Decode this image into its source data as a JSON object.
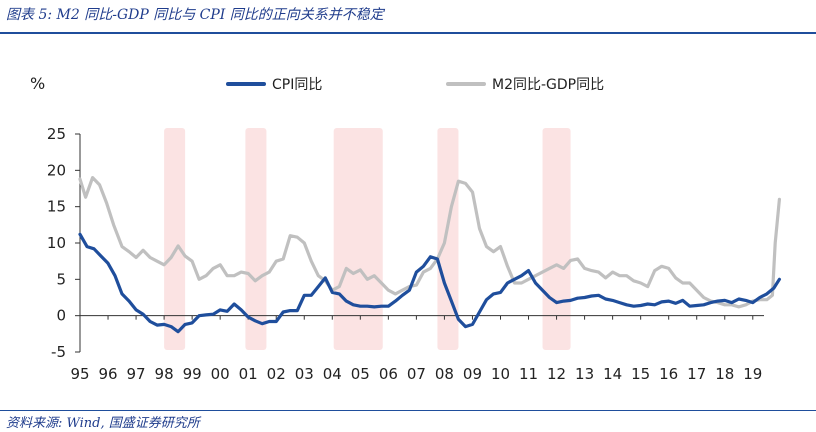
{
  "title": "图表 5:  M2 同比-GDP 同比与 CPI 同比的正向关系并不稳定",
  "source": "资料来源:  Wind, 国盛证券研究所",
  "chart_data": {
    "type": "line",
    "unit_label": "%",
    "ylim": [
      -5,
      25
    ],
    "yticks": [
      -5,
      0,
      5,
      10,
      15,
      20,
      25
    ],
    "xlim": [
      1995,
      2019.4
    ],
    "xticks": [
      {
        "x": 1995,
        "label": "95"
      },
      {
        "x": 1996,
        "label": "96"
      },
      {
        "x": 1997,
        "label": "97"
      },
      {
        "x": 1998,
        "label": "98"
      },
      {
        "x": 1999,
        "label": "99"
      },
      {
        "x": 2000,
        "label": "00"
      },
      {
        "x": 2001,
        "label": "01"
      },
      {
        "x": 2002,
        "label": "02"
      },
      {
        "x": 2003,
        "label": "03"
      },
      {
        "x": 2004,
        "label": "04"
      },
      {
        "x": 2005,
        "label": "05"
      },
      {
        "x": 2006,
        "label": "06"
      },
      {
        "x": 2007,
        "label": "07"
      },
      {
        "x": 2008,
        "label": "08"
      },
      {
        "x": 2009,
        "label": "09"
      },
      {
        "x": 2010,
        "label": "10"
      },
      {
        "x": 2011,
        "label": "11"
      },
      {
        "x": 2012,
        "label": "12"
      },
      {
        "x": 2013,
        "label": "13"
      },
      {
        "x": 2014,
        "label": "14"
      },
      {
        "x": 2015,
        "label": "15"
      },
      {
        "x": 2016,
        "label": "16"
      },
      {
        "x": 2017,
        "label": "17"
      },
      {
        "x": 2018,
        "label": "18"
      },
      {
        "x": 2019,
        "label": "19"
      }
    ],
    "shaded_periods": [
      [
        1998.0,
        1998.75
      ],
      [
        2000.9,
        2001.65
      ],
      [
        2004.05,
        2005.8
      ],
      [
        2007.75,
        2008.5
      ],
      [
        2011.5,
        2012.5
      ]
    ],
    "shade_color": "#fbe3e3",
    "series": [
      {
        "name": "CPI同比",
        "color": "#1f4e9c",
        "points": [
          [
            1995.0,
            11.2
          ],
          [
            1995.25,
            9.5
          ],
          [
            1995.5,
            9.2
          ],
          [
            1995.75,
            8.2
          ],
          [
            1996.0,
            7.2
          ],
          [
            1996.25,
            5.5
          ],
          [
            1996.5,
            3.0
          ],
          [
            1996.75,
            2.0
          ],
          [
            1997.0,
            0.8
          ],
          [
            1997.25,
            0.2
          ],
          [
            1997.5,
            -0.8
          ],
          [
            1997.75,
            -1.3
          ],
          [
            1998.0,
            -1.2
          ],
          [
            1998.25,
            -1.5
          ],
          [
            1998.5,
            -2.2
          ],
          [
            1998.75,
            -1.2
          ],
          [
            1999.0,
            -1.0
          ],
          [
            1999.25,
            0.0
          ],
          [
            1999.5,
            0.1
          ],
          [
            1999.75,
            0.2
          ],
          [
            2000.0,
            0.8
          ],
          [
            2000.25,
            0.6
          ],
          [
            2000.5,
            1.6
          ],
          [
            2000.75,
            0.8
          ],
          [
            2001.0,
            -0.2
          ],
          [
            2001.25,
            -0.7
          ],
          [
            2001.5,
            -1.1
          ],
          [
            2001.75,
            -0.8
          ],
          [
            2002.0,
            -0.8
          ],
          [
            2002.25,
            0.5
          ],
          [
            2002.5,
            0.7
          ],
          [
            2002.75,
            0.7
          ],
          [
            2003.0,
            2.8
          ],
          [
            2003.25,
            2.8
          ],
          [
            2003.5,
            4.0
          ],
          [
            2003.75,
            5.2
          ],
          [
            2004.0,
            3.2
          ],
          [
            2004.25,
            3.0
          ],
          [
            2004.5,
            2.0
          ],
          [
            2004.75,
            1.5
          ],
          [
            2005.0,
            1.3
          ],
          [
            2005.25,
            1.3
          ],
          [
            2005.5,
            1.2
          ],
          [
            2005.75,
            1.3
          ],
          [
            2006.0,
            1.3
          ],
          [
            2006.25,
            2.0
          ],
          [
            2006.5,
            2.8
          ],
          [
            2006.75,
            3.5
          ],
          [
            2007.0,
            6.0
          ],
          [
            2007.25,
            6.8
          ],
          [
            2007.5,
            8.1
          ],
          [
            2007.75,
            7.8
          ],
          [
            2008.0,
            4.5
          ],
          [
            2008.25,
            2.0
          ],
          [
            2008.5,
            -0.5
          ],
          [
            2008.75,
            -1.5
          ],
          [
            2009.0,
            -1.2
          ],
          [
            2009.25,
            0.5
          ],
          [
            2009.5,
            2.2
          ],
          [
            2009.75,
            3.0
          ],
          [
            2010.0,
            3.2
          ],
          [
            2010.25,
            4.5
          ],
          [
            2010.5,
            5.0
          ],
          [
            2010.75,
            5.5
          ],
          [
            2011.0,
            6.2
          ],
          [
            2011.25,
            4.5
          ],
          [
            2011.5,
            3.5
          ],
          [
            2011.75,
            2.5
          ],
          [
            2012.0,
            1.8
          ],
          [
            2012.25,
            2.0
          ],
          [
            2012.5,
            2.1
          ],
          [
            2012.75,
            2.4
          ],
          [
            2013.0,
            2.5
          ],
          [
            2013.25,
            2.7
          ],
          [
            2013.5,
            2.8
          ],
          [
            2013.75,
            2.3
          ],
          [
            2014.0,
            2.1
          ],
          [
            2014.25,
            1.8
          ],
          [
            2014.5,
            1.5
          ],
          [
            2014.75,
            1.3
          ],
          [
            2015.0,
            1.4
          ],
          [
            2015.25,
            1.6
          ],
          [
            2015.5,
            1.5
          ],
          [
            2015.75,
            1.9
          ],
          [
            2016.0,
            2.0
          ],
          [
            2016.25,
            1.7
          ],
          [
            2016.5,
            2.1
          ],
          [
            2016.75,
            1.3
          ],
          [
            2017.0,
            1.4
          ],
          [
            2017.25,
            1.5
          ],
          [
            2017.5,
            1.8
          ],
          [
            2017.75,
            2.0
          ],
          [
            2018.0,
            2.1
          ],
          [
            2018.25,
            1.8
          ],
          [
            2018.5,
            2.3
          ],
          [
            2018.75,
            2.1
          ],
          [
            2019.0,
            1.8
          ],
          [
            2019.25,
            2.5
          ],
          [
            2019.5,
            3.0
          ],
          [
            2019.75,
            3.8
          ],
          [
            2019.95,
            5.0
          ]
        ]
      },
      {
        "name": "M2同比-GDP同比",
        "color": "#c0c0c0",
        "points": [
          [
            1995.0,
            18.8
          ],
          [
            1995.2,
            16.3
          ],
          [
            1995.45,
            19.0
          ],
          [
            1995.7,
            18.0
          ],
          [
            1995.95,
            15.5
          ],
          [
            1996.2,
            12.5
          ],
          [
            1996.5,
            9.5
          ],
          [
            1996.75,
            8.8
          ],
          [
            1997.0,
            8.0
          ],
          [
            1997.25,
            9.0
          ],
          [
            1997.5,
            8.0
          ],
          [
            1997.75,
            7.5
          ],
          [
            1998.0,
            7.0
          ],
          [
            1998.25,
            8.0
          ],
          [
            1998.5,
            9.6
          ],
          [
            1998.75,
            8.2
          ],
          [
            1999.0,
            7.5
          ],
          [
            1999.25,
            5.0
          ],
          [
            1999.5,
            5.5
          ],
          [
            1999.75,
            6.5
          ],
          [
            2000.0,
            7.0
          ],
          [
            2000.25,
            5.5
          ],
          [
            2000.5,
            5.5
          ],
          [
            2000.75,
            6.0
          ],
          [
            2001.0,
            5.8
          ],
          [
            2001.25,
            4.8
          ],
          [
            2001.5,
            5.5
          ],
          [
            2001.75,
            6.0
          ],
          [
            2002.0,
            7.5
          ],
          [
            2002.25,
            7.8
          ],
          [
            2002.5,
            11.0
          ],
          [
            2002.75,
            10.8
          ],
          [
            2003.0,
            10.0
          ],
          [
            2003.25,
            7.5
          ],
          [
            2003.5,
            5.5
          ],
          [
            2003.75,
            4.8
          ],
          [
            2004.0,
            3.5
          ],
          [
            2004.25,
            4.0
          ],
          [
            2004.5,
            6.5
          ],
          [
            2004.75,
            5.8
          ],
          [
            2005.0,
            6.3
          ],
          [
            2005.25,
            5.0
          ],
          [
            2005.5,
            5.5
          ],
          [
            2005.75,
            4.5
          ],
          [
            2006.0,
            3.5
          ],
          [
            2006.25,
            3.0
          ],
          [
            2006.5,
            3.5
          ],
          [
            2006.75,
            4.0
          ],
          [
            2007.0,
            4.2
          ],
          [
            2007.25,
            6.0
          ],
          [
            2007.5,
            6.5
          ],
          [
            2007.75,
            7.8
          ],
          [
            2008.0,
            10.0
          ],
          [
            2008.25,
            15.0
          ],
          [
            2008.5,
            18.5
          ],
          [
            2008.75,
            18.2
          ],
          [
            2009.0,
            17.0
          ],
          [
            2009.25,
            12.0
          ],
          [
            2009.5,
            9.5
          ],
          [
            2009.75,
            8.8
          ],
          [
            2010.0,
            9.5
          ],
          [
            2010.25,
            6.8
          ],
          [
            2010.5,
            4.5
          ],
          [
            2010.75,
            4.5
          ],
          [
            2011.0,
            5.0
          ],
          [
            2011.25,
            5.5
          ],
          [
            2011.5,
            6.0
          ],
          [
            2011.75,
            6.5
          ],
          [
            2012.0,
            7.0
          ],
          [
            2012.25,
            6.5
          ],
          [
            2012.5,
            7.6
          ],
          [
            2012.75,
            7.8
          ],
          [
            2013.0,
            6.5
          ],
          [
            2013.25,
            6.2
          ],
          [
            2013.5,
            6.0
          ],
          [
            2013.75,
            5.2
          ],
          [
            2014.0,
            6.0
          ],
          [
            2014.25,
            5.5
          ],
          [
            2014.5,
            5.5
          ],
          [
            2014.75,
            4.8
          ],
          [
            2015.0,
            4.5
          ],
          [
            2015.25,
            4.0
          ],
          [
            2015.5,
            6.2
          ],
          [
            2015.75,
            6.8
          ],
          [
            2016.0,
            6.5
          ],
          [
            2016.25,
            5.2
          ],
          [
            2016.5,
            4.5
          ],
          [
            2016.75,
            4.5
          ],
          [
            2017.0,
            3.5
          ],
          [
            2017.25,
            2.5
          ],
          [
            2017.5,
            2.0
          ],
          [
            2017.75,
            1.8
          ],
          [
            2018.0,
            1.5
          ],
          [
            2018.25,
            1.5
          ],
          [
            2018.5,
            1.2
          ],
          [
            2018.75,
            1.5
          ],
          [
            2019.0,
            2.0
          ],
          [
            2019.25,
            2.2
          ],
          [
            2019.5,
            2.2
          ],
          [
            2019.7,
            2.8
          ],
          [
            2019.8,
            10.0
          ],
          [
            2019.95,
            16.0
          ]
        ]
      }
    ]
  }
}
